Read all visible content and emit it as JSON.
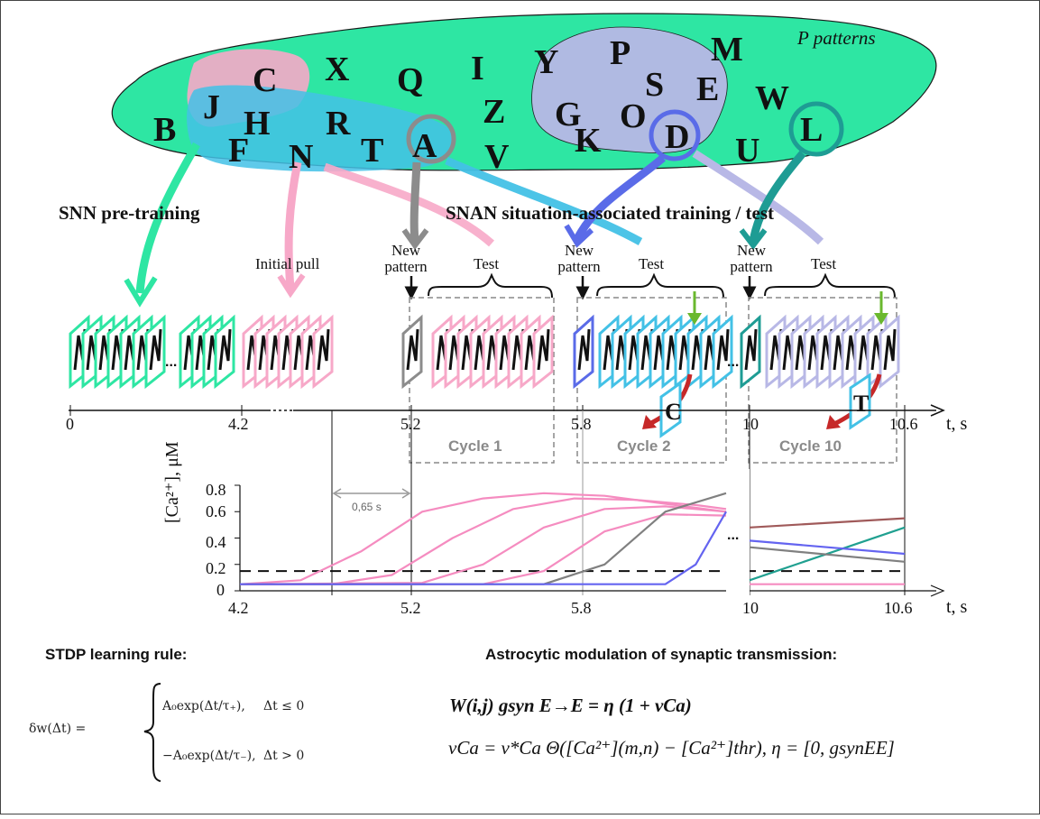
{
  "background_letters": [
    "C",
    "X",
    "Q",
    "I",
    "Y",
    "P",
    "M",
    "J",
    "Z",
    "S",
    "E",
    "W",
    "B",
    "H",
    "R",
    "G",
    "O",
    "F",
    "N",
    "T",
    "A",
    "K",
    "D",
    "U",
    "L",
    "V"
  ],
  "labels": {
    "p_patterns": "P patterns",
    "snn_pretraining": "SNN pre-training",
    "snan_training": "SNAN situation-associated training / test",
    "initial_pull": "Initial pull",
    "new_pattern_1": "New pattern",
    "new_pattern_2": "New pattern",
    "new_pattern_3": "New pattern",
    "test_1": "Test",
    "test_2": "Test",
    "test_3": "Test",
    "cycle_1": "Cycle 1",
    "cycle_2": "Cycle 2",
    "cycle_10": "Cycle 10",
    "ellipsis_1": "...",
    "ellipsis_2": "...",
    "ellipsis_3": "..."
  },
  "timeline": {
    "ticks": [
      "0",
      "4.2",
      "5.2",
      "5.8",
      "10",
      "10.6"
    ],
    "axis_label": "t, s"
  },
  "calcium_plot": {
    "y_label": "[Ca²⁺], μM",
    "y_ticks": [
      "0.8",
      "0.6",
      "0.4",
      "0.2",
      "0"
    ],
    "x_ticks": [
      "4.2",
      "5.2",
      "5.8",
      "10",
      "10.6"
    ],
    "axis_label": "t, s",
    "interval_label": "0,65 s",
    "threshold": 0.15
  },
  "chart_data": {
    "type": "line",
    "xlabel": "t, s",
    "ylabel": "[Ca2+], μM",
    "ylim": [
      0,
      0.8
    ],
    "x_segments": [
      [
        4.2,
        5.8
      ],
      [
        10,
        10.6
      ]
    ],
    "threshold": 0.15,
    "series": [
      {
        "color": "#f58cc0",
        "x": [
          4.2,
          4.4,
          4.6,
          4.8,
          5.0,
          5.2,
          5.4,
          5.6,
          5.8
        ],
        "values": [
          0.05,
          0.08,
          0.3,
          0.6,
          0.7,
          0.74,
          0.72,
          0.66,
          0.6
        ]
      },
      {
        "color": "#f58cc0",
        "x": [
          4.2,
          4.5,
          4.7,
          4.9,
          5.1,
          5.3,
          5.5,
          5.7,
          5.8
        ],
        "values": [
          0.05,
          0.05,
          0.12,
          0.4,
          0.62,
          0.7,
          0.69,
          0.65,
          0.62
        ]
      },
      {
        "color": "#f58cc0",
        "x": [
          4.2,
          4.8,
          5.0,
          5.2,
          5.4,
          5.6,
          5.8
        ],
        "values": [
          0.05,
          0.06,
          0.2,
          0.48,
          0.62,
          0.64,
          0.6
        ]
      },
      {
        "color": "#f58cc0",
        "x": [
          4.2,
          5.0,
          5.2,
          5.4,
          5.6,
          5.8
        ],
        "values": [
          0.05,
          0.05,
          0.15,
          0.45,
          0.58,
          0.57
        ]
      },
      {
        "color": "#808080",
        "x": [
          4.2,
          5.2,
          5.4,
          5.6,
          5.8
        ],
        "values": [
          0.05,
          0.05,
          0.2,
          0.6,
          0.74
        ]
      },
      {
        "color": "#6464f0",
        "x": [
          4.2,
          5.6,
          5.7,
          5.8
        ],
        "values": [
          0.05,
          0.05,
          0.2,
          0.6
        ]
      },
      {
        "color": "#a05a5a",
        "x": [
          10,
          10.6
        ],
        "values": [
          0.48,
          0.55
        ]
      },
      {
        "color": "#20a090",
        "x": [
          10,
          10.6
        ],
        "values": [
          0.08,
          0.48
        ]
      },
      {
        "color": "#6464f0",
        "x": [
          10,
          10.6
        ],
        "values": [
          0.38,
          0.28
        ]
      },
      {
        "color": "#808080",
        "x": [
          10,
          10.6
        ],
        "values": [
          0.33,
          0.22
        ]
      },
      {
        "color": "#f58cc0",
        "x": [
          10,
          10.6
        ],
        "values": [
          0.05,
          0.05
        ]
      }
    ]
  },
  "stdp": {
    "title": "STDP learning rule:",
    "lhs": "δw(Δt) =",
    "case1": "A₀exp(Δt/τ₊),",
    "cond1": "Δt ≤ 0",
    "case2": "−A₀exp(Δt/τ₋),",
    "cond2": "Δt > 0"
  },
  "astro": {
    "title": "Astrocytic modulation of synaptic transmission:",
    "eq1": "W(i,j) gsyn E→E = η (1 + νCa)",
    "eq2": "νCa = ν*Ca Θ([Ca²⁺](m,n) − [Ca²⁺]thr), η = [0, gsynEE]"
  },
  "colors": {
    "green_blob": "#2ee6a3",
    "pink": "#f7a8c8",
    "cyan": "#43c1e6",
    "lavender": "#b8b8e6",
    "gray": "#8c8c8c",
    "blue": "#5a6be8",
    "teal": "#1e9c94",
    "red_arrow": "#c62828",
    "green_arrow": "#6ab82e"
  }
}
